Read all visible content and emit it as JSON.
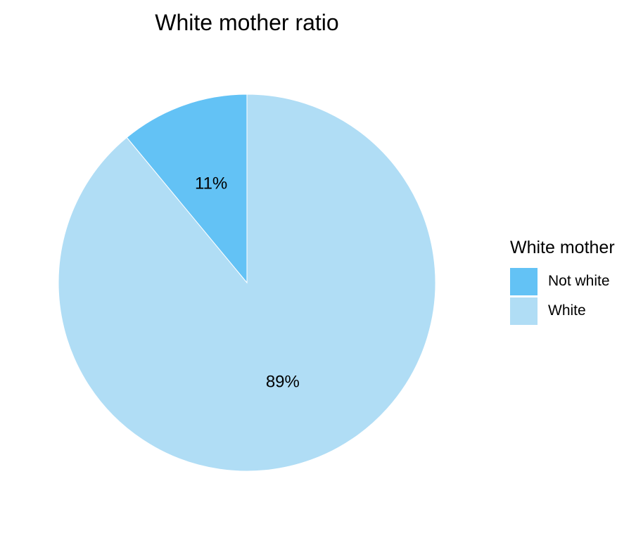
{
  "chart_data": {
    "type": "pie",
    "title": "White mother ratio",
    "legend_title": "White mother",
    "legend_position": "right",
    "start": "top",
    "direction": "counterclockwise",
    "slices": [
      {
        "label": "Not white",
        "value": 11,
        "display": "11%",
        "color": "#63C2F5"
      },
      {
        "label": "White",
        "value": 89,
        "display": "89%",
        "color": "#B0DDF5"
      }
    ]
  }
}
